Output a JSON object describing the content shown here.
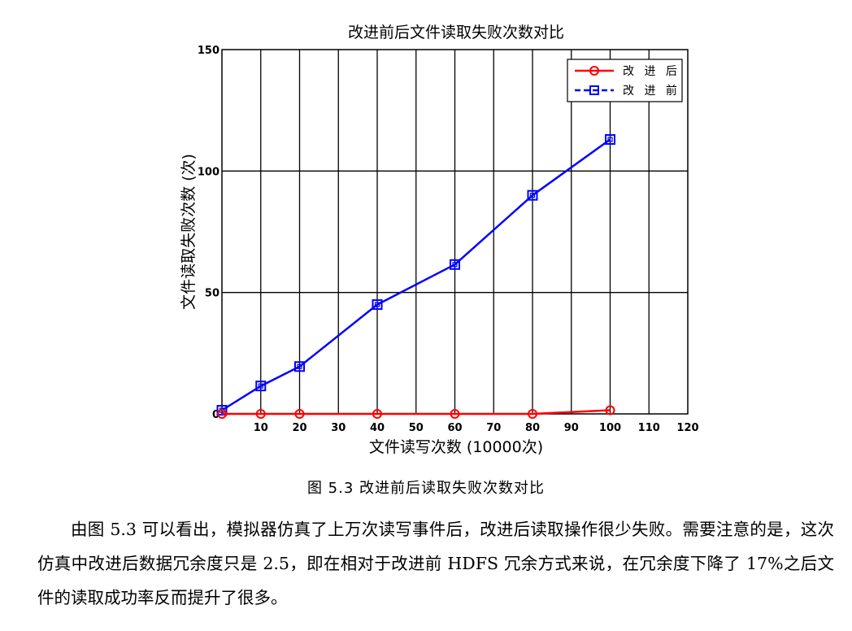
{
  "figure": {
    "caption": "图 5.3 改进前后读取失败次数对比"
  },
  "chart_data": {
    "type": "line",
    "title": "改进前后文件读取失败次数对比",
    "xlabel": "文件读写次数 (10000次)",
    "ylabel": "文件读取失败次数 (次)",
    "xlim": [
      0,
      120
    ],
    "ylim": [
      0,
      150
    ],
    "xticks": [
      10,
      20,
      30,
      40,
      50,
      60,
      70,
      80,
      90,
      100,
      110,
      120
    ],
    "yticks": [
      0,
      50,
      100,
      150
    ],
    "grid": true,
    "legend_position": "top-right",
    "series": [
      {
        "name": "改 进 后",
        "color": "#ff0000",
        "line_style": "solid",
        "marker": "circle",
        "x": [
          0,
          10,
          20,
          40,
          60,
          80,
          100
        ],
        "y": [
          0,
          0,
          0,
          0,
          0,
          0,
          1.5
        ]
      },
      {
        "name": "改 进 前",
        "color": "#0000ff",
        "line_style": "solid",
        "legend_line_style": "dashed",
        "marker": "square",
        "x": [
          0,
          10,
          20,
          40,
          60,
          80,
          100
        ],
        "y": [
          1.5,
          11.5,
          19.5,
          45,
          61.5,
          90,
          113
        ]
      }
    ]
  },
  "body": {
    "paragraph": "由图 5.3 可以看出，模拟器仿真了上万次读写事件后，改进后读取操作很少失败。需要注意的是，这次仿真中改进后数据冗余度只是 2.5，即在相对于改进前 HDFS 冗余方式来说，在冗余度下降了 17%之后文件的读取成功率反而提升了很多。"
  }
}
